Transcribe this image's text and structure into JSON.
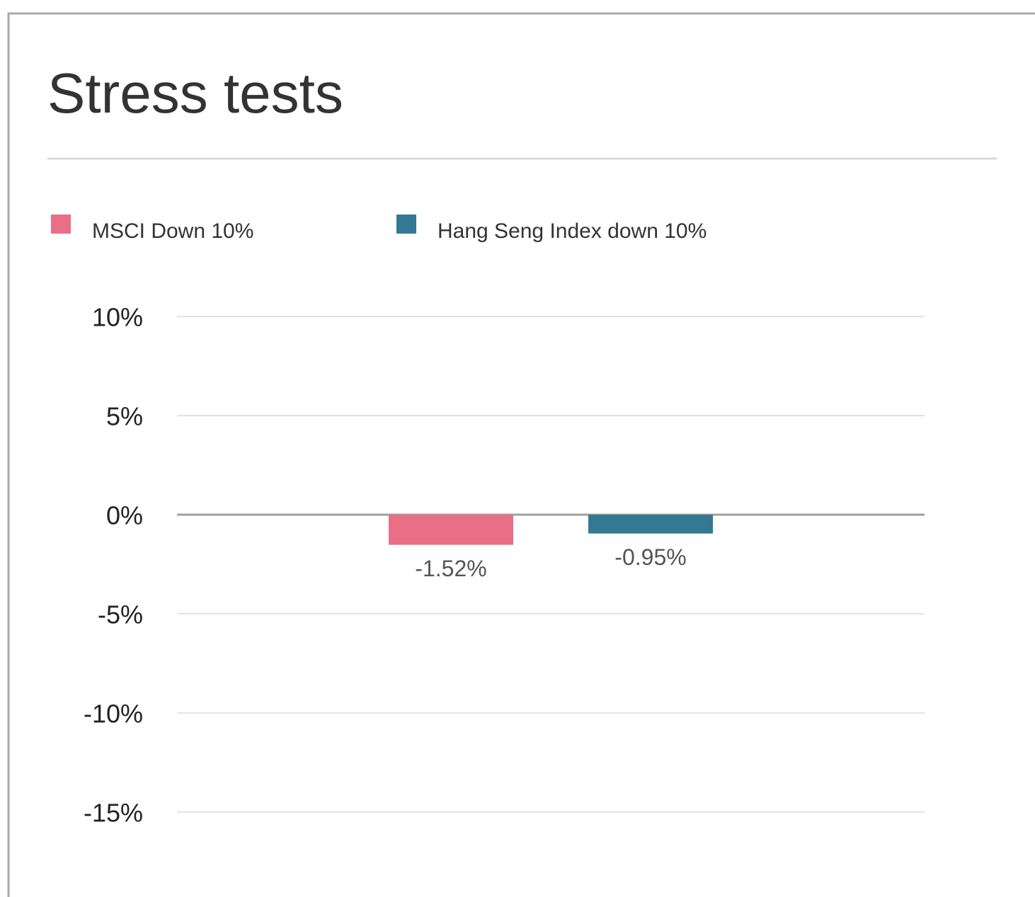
{
  "chart_data": {
    "type": "bar",
    "title": "Stress tests",
    "categories": [
      null
    ],
    "series": [
      {
        "name": "MSCI Down 10%",
        "color": "#e86f86",
        "values": [
          -1.52
        ],
        "value_labels": [
          "-1.52%"
        ]
      },
      {
        "name": "Hang Seng Index down 10%",
        "color": "#347994",
        "values": [
          -0.95
        ],
        "value_labels": [
          "-0.95%"
        ]
      }
    ],
    "ylim": [
      -15,
      10
    ],
    "yticks": [
      {
        "value": 10,
        "label": "10%"
      },
      {
        "value": 5,
        "label": "5%"
      },
      {
        "value": 0,
        "label": "0%"
      },
      {
        "value": -5,
        "label": "-5%"
      },
      {
        "value": -10,
        "label": "-10%"
      },
      {
        "value": -15,
        "label": "-15%"
      }
    ],
    "grid": true
  }
}
